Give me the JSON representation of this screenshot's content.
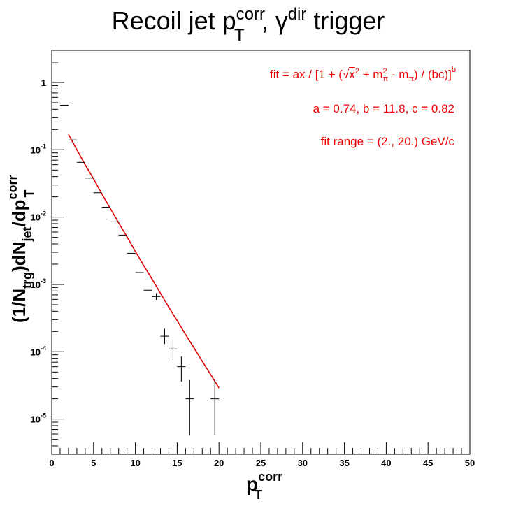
{
  "chart_data": {
    "type": "scatter",
    "title": {
      "main": "Recoil jet p",
      "sup1": "corr",
      "sub1": "T",
      "mid": ", γ",
      "sup2": "dir",
      "end": " trigger"
    },
    "xlabel": {
      "main": "p",
      "sup": "corr",
      "sub": "T"
    },
    "ylabel": {
      "a": "(1/N",
      "b": "trg",
      "c": ")dN",
      "d": "jet",
      "e": "/dp",
      "f": "corr",
      "g": "T"
    },
    "x_axis": {
      "range": [
        0,
        50
      ],
      "ticks": [
        0,
        5,
        10,
        15,
        20,
        25,
        30,
        35,
        40,
        45,
        50
      ],
      "tick_labels": [
        "0",
        "5",
        "10",
        "15",
        "20",
        "25",
        "30",
        "35",
        "40",
        "45",
        "50"
      ]
    },
    "y_axis": {
      "scale": "log",
      "range": [
        3e-06,
        3.0
      ],
      "ticks": [
        1e-05,
        0.0001,
        0.001,
        0.01,
        0.1,
        1
      ],
      "tick_labels": [
        {
          "base": "10",
          "exp": "-5"
        },
        {
          "base": "10",
          "exp": "-4"
        },
        {
          "base": "10",
          "exp": "-3"
        },
        {
          "base": "10",
          "exp": "-2"
        },
        {
          "base": "10",
          "exp": "-1"
        },
        {
          "base": "1",
          "exp": ""
        }
      ]
    },
    "grid": false,
    "series": [
      {
        "kind": "points_with_errors",
        "color": "#000000",
        "points": [
          {
            "x": 1.5,
            "y": 0.46,
            "xerr": 0.5,
            "ylo": 0.46,
            "yhi": 0.46
          },
          {
            "x": 2.5,
            "y": 0.14,
            "xerr": 0.5,
            "ylo": 0.14,
            "yhi": 0.14
          },
          {
            "x": 3.5,
            "y": 0.065,
            "xerr": 0.5,
            "ylo": 0.065,
            "yhi": 0.065
          },
          {
            "x": 4.5,
            "y": 0.038,
            "xerr": 0.5,
            "ylo": 0.038,
            "yhi": 0.038
          },
          {
            "x": 5.5,
            "y": 0.023,
            "xerr": 0.5,
            "ylo": 0.023,
            "yhi": 0.023
          },
          {
            "x": 6.5,
            "y": 0.014,
            "xerr": 0.5,
            "ylo": 0.014,
            "yhi": 0.014
          },
          {
            "x": 7.5,
            "y": 0.0085,
            "xerr": 0.5,
            "ylo": 0.0085,
            "yhi": 0.0085
          },
          {
            "x": 8.5,
            "y": 0.0054,
            "xerr": 0.5,
            "ylo": 0.0054,
            "yhi": 0.0054
          },
          {
            "x": 9.5,
            "y": 0.0029,
            "xerr": 0.5,
            "ylo": 0.0029,
            "yhi": 0.0029
          },
          {
            "x": 10.5,
            "y": 0.0015,
            "xerr": 0.5,
            "ylo": 0.0015,
            "yhi": 0.0015
          },
          {
            "x": 11.5,
            "y": 0.00082,
            "xerr": 0.5,
            "ylo": 0.00082,
            "yhi": 0.00082
          },
          {
            "x": 12.5,
            "y": 0.00066,
            "xerr": 0.5,
            "ylo": 0.00059,
            "yhi": 0.00074
          },
          {
            "x": 13.5,
            "y": 0.00017,
            "xerr": 0.5,
            "ylo": 0.00013,
            "yhi": 0.00022
          },
          {
            "x": 14.5,
            "y": 0.00011,
            "xerr": 0.5,
            "ylo": 7.5e-05,
            "yhi": 0.000145
          },
          {
            "x": 15.5,
            "y": 6e-05,
            "xerr": 0.5,
            "ylo": 3.6e-05,
            "yhi": 8.5e-05
          },
          {
            "x": 16.5,
            "y": 2e-05,
            "xerr": 0.5,
            "ylo": 5.7e-06,
            "yhi": 3.8e-05
          },
          {
            "x": 19.5,
            "y": 2e-05,
            "xerr": 0.5,
            "ylo": 5.7e-06,
            "yhi": 3.8e-05
          }
        ]
      },
      {
        "kind": "fit_line",
        "color": "#dd0000",
        "x": [
          2,
          3,
          4,
          5,
          6,
          7,
          8,
          9,
          10,
          11,
          12,
          13,
          14,
          15,
          16,
          17,
          18,
          19,
          20
        ],
        "y": [
          0.17,
          0.1,
          0.06,
          0.037,
          0.022,
          0.0135,
          0.0082,
          0.0051,
          0.0031,
          0.0019,
          0.0012,
          0.00074,
          0.00046,
          0.00029,
          0.00018,
          0.000115,
          7.2e-05,
          4.6e-05,
          2.9e-05
        ]
      }
    ],
    "annotations": {
      "color": "#ee0000",
      "fit_formula": {
        "p1": "fit = ax / [1 + (",
        "x2_base": "x",
        "x2_exp": "2",
        "plus": " + m",
        "mpi_sub": "π",
        "mpi_sup": "2",
        "minus": " - m",
        "mpi2_sub": "π",
        "p2": ") / (bc)]",
        "exp_b": "b"
      },
      "params": "a = 0.74, b = 11.8, c = 0.82",
      "range": "fit range = (2., 20.) GeV/c"
    }
  }
}
